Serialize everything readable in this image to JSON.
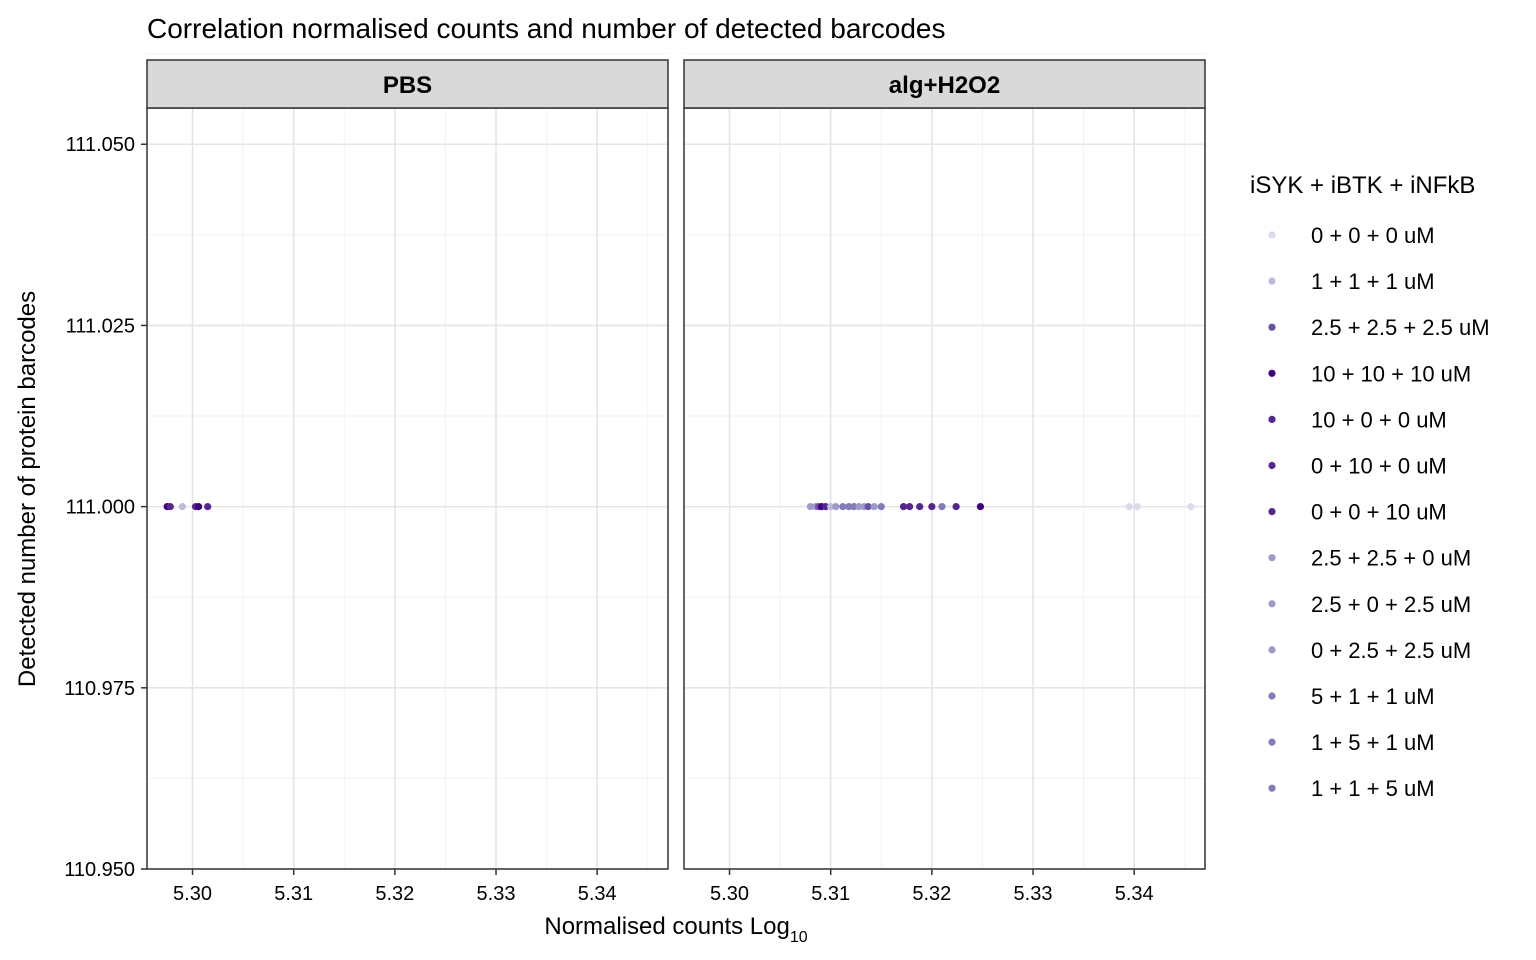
{
  "chart_data": {
    "type": "scatter",
    "title": "Correlation normalised counts and number of detected barcodes",
    "xlabel": "Normalised counts Log",
    "xlabel_subscript": "10",
    "ylabel": "Detected number of protein barcodes",
    "xlim": [
      5.2955,
      5.347
    ],
    "ylim": [
      110.95,
      111.055
    ],
    "x_ticks": [
      5.3,
      5.31,
      5.32,
      5.33,
      5.34
    ],
    "x_tick_labels": [
      "5.30",
      "5.31",
      "5.32",
      "5.33",
      "5.34"
    ],
    "y_ticks": [
      110.95,
      110.975,
      111.0,
      111.025,
      111.05
    ],
    "y_tick_labels": [
      "110.950",
      "110.975",
      "111.000",
      "111.025",
      "111.050"
    ],
    "grid": true,
    "legend_position": "right",
    "legend": {
      "title": "iSYK + iBTK + iNFkB",
      "entries": [
        {
          "label": "0 + 0 + 0 uM",
          "color": "#dadaeb"
        },
        {
          "label": "1 + 1 + 1 uM",
          "color": "#bcbddc"
        },
        {
          "label": "2.5 + 2.5 + 2.5 uM",
          "color": "#6a51a3"
        },
        {
          "label": "10 + 10 + 10 uM",
          "color": "#3f007d"
        },
        {
          "label": "10 + 0 + 0 uM",
          "color": "#54278f"
        },
        {
          "label": "0 + 10 + 0 uM",
          "color": "#54278f"
        },
        {
          "label": "0 + 0 + 10 uM",
          "color": "#54278f"
        },
        {
          "label": "2.5 + 2.5 + 0 uM",
          "color": "#9e9ac8"
        },
        {
          "label": "2.5 + 0 + 2.5 uM",
          "color": "#9e9ac8"
        },
        {
          "label": "0 + 2.5 + 2.5 uM",
          "color": "#9e9ac8"
        },
        {
          "label": "5 + 1 + 1 uM",
          "color": "#807dba"
        },
        {
          "label": "1 + 5 + 1 uM",
          "color": "#807dba"
        },
        {
          "label": "1 + 1 + 5 uM",
          "color": "#807dba"
        }
      ]
    },
    "panels": [
      {
        "name": "PBS",
        "points": [
          {
            "x": 5.2975,
            "y": 111.0,
            "group": "10 + 10 + 10 uM"
          },
          {
            "x": 5.2978,
            "y": 111.0,
            "group": "10 + 0 + 0 uM"
          },
          {
            "x": 5.299,
            "y": 111.0,
            "group": "1 + 1 + 1 uM"
          },
          {
            "x": 5.3003,
            "y": 111.0,
            "group": "0 + 10 + 0 uM"
          },
          {
            "x": 5.3006,
            "y": 111.0,
            "group": "10 + 10 + 10 uM"
          },
          {
            "x": 5.3015,
            "y": 111.0,
            "group": "0 + 0 + 10 uM"
          }
        ]
      },
      {
        "name": "alg+H2O2",
        "points": [
          {
            "x": 5.308,
            "y": 111.0,
            "group": "2.5 + 0 + 2.5 uM"
          },
          {
            "x": 5.3085,
            "y": 111.0,
            "group": "0 + 2.5 + 2.5 uM"
          },
          {
            "x": 5.3088,
            "y": 111.0,
            "group": "2.5 + 2.5 + 2.5 uM"
          },
          {
            "x": 5.3091,
            "y": 111.0,
            "group": "10 + 10 + 10 uM"
          },
          {
            "x": 5.3095,
            "y": 111.0,
            "group": "10 + 0 + 0 uM"
          },
          {
            "x": 5.31,
            "y": 111.0,
            "group": "1 + 1 + 1 uM"
          },
          {
            "x": 5.3105,
            "y": 111.0,
            "group": "2.5 + 2.5 + 0 uM"
          },
          {
            "x": 5.3112,
            "y": 111.0,
            "group": "1 + 5 + 1 uM"
          },
          {
            "x": 5.3118,
            "y": 111.0,
            "group": "5 + 1 + 1 uM"
          },
          {
            "x": 5.3123,
            "y": 111.0,
            "group": "1 + 1 + 5 uM"
          },
          {
            "x": 5.3128,
            "y": 111.0,
            "group": "2.5 + 0 + 2.5 uM"
          },
          {
            "x": 5.3133,
            "y": 111.0,
            "group": "0 + 2.5 + 2.5 uM"
          },
          {
            "x": 5.3137,
            "y": 111.0,
            "group": "2.5 + 2.5 + 2.5 uM"
          },
          {
            "x": 5.3143,
            "y": 111.0,
            "group": "2.5 + 2.5 + 0 uM"
          },
          {
            "x": 5.315,
            "y": 111.0,
            "group": "1 + 1 + 5 uM"
          },
          {
            "x": 5.3172,
            "y": 111.0,
            "group": "0 + 10 + 0 uM"
          },
          {
            "x": 5.3178,
            "y": 111.0,
            "group": "0 + 0 + 10 uM"
          },
          {
            "x": 5.3188,
            "y": 111.0,
            "group": "10 + 0 + 0 uM"
          },
          {
            "x": 5.32,
            "y": 111.0,
            "group": "0 + 10 + 0 uM"
          },
          {
            "x": 5.321,
            "y": 111.0,
            "group": "1 + 5 + 1 uM"
          },
          {
            "x": 5.3224,
            "y": 111.0,
            "group": "0 + 0 + 10 uM"
          },
          {
            "x": 5.3248,
            "y": 111.0,
            "group": "10 + 10 + 10 uM"
          },
          {
            "x": 5.3395,
            "y": 111.0,
            "group": "0 + 0 + 0 uM"
          },
          {
            "x": 5.3403,
            "y": 111.0,
            "group": "0 + 0 + 0 uM"
          },
          {
            "x": 5.3456,
            "y": 111.0,
            "group": "0 + 0 + 0 uM"
          }
        ]
      }
    ]
  }
}
